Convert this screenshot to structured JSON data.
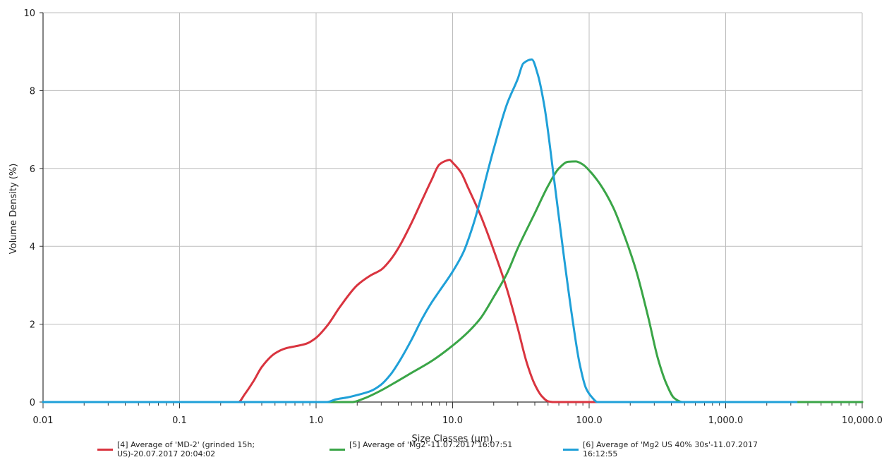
{
  "chart_data": {
    "type": "line",
    "xlabel": "Size Classes (µm)",
    "ylabel": "Volume Density (%)",
    "xscale": "log",
    "xlim": [
      0.01,
      10000
    ],
    "ylim": [
      0,
      10
    ],
    "grid": true,
    "legend_position": "bottom",
    "x_ticks": [
      0.01,
      0.1,
      1,
      10,
      100,
      1000,
      10000
    ],
    "x_tick_labels": [
      "0.01",
      "0.1",
      "1.0",
      "10.0",
      "100.0",
      "1,000.0",
      "10,000.0"
    ],
    "y_ticks": [
      0,
      2,
      4,
      6,
      8,
      10
    ],
    "y_tick_labels": [
      "0",
      "2",
      "4",
      "6",
      "8",
      "10"
    ],
    "series": [
      {
        "name": "[4] Average of 'MD-2' (grinded 15h; US)-20.07.2017 20:04:02",
        "color": "#d9343f",
        "points": [
          [
            0.01,
            0
          ],
          [
            0.27,
            0
          ],
          [
            0.3,
            0.2
          ],
          [
            0.35,
            0.55
          ],
          [
            0.4,
            0.9
          ],
          [
            0.5,
            1.25
          ],
          [
            0.6,
            1.38
          ],
          [
            0.7,
            1.43
          ],
          [
            0.85,
            1.5
          ],
          [
            1.0,
            1.65
          ],
          [
            1.2,
            1.95
          ],
          [
            1.5,
            2.45
          ],
          [
            2.0,
            3.0
          ],
          [
            2.5,
            3.25
          ],
          [
            3.0,
            3.4
          ],
          [
            3.5,
            3.65
          ],
          [
            4.0,
            3.95
          ],
          [
            5.0,
            4.6
          ],
          [
            6.0,
            5.2
          ],
          [
            7.0,
            5.7
          ],
          [
            8.0,
            6.1
          ],
          [
            9.0,
            6.2
          ],
          [
            9.5,
            6.22
          ],
          [
            10.0,
            6.15
          ],
          [
            11.5,
            5.9
          ],
          [
            13.0,
            5.5
          ],
          [
            16.0,
            4.8
          ],
          [
            20.0,
            3.9
          ],
          [
            25.0,
            2.9
          ],
          [
            30.0,
            1.9
          ],
          [
            35.0,
            1.0
          ],
          [
            40.0,
            0.45
          ],
          [
            45.0,
            0.15
          ],
          [
            50.0,
            0.02
          ],
          [
            55.0,
            0
          ],
          [
            10000,
            0
          ]
        ]
      },
      {
        "name": "[5] Average of 'Mg2'-11.07.2017 16:07:51",
        "color": "#3aa547",
        "points": [
          [
            0.01,
            0
          ],
          [
            1.85,
            0
          ],
          [
            2.2,
            0.08
          ],
          [
            3.0,
            0.3
          ],
          [
            4.0,
            0.55
          ],
          [
            5.0,
            0.75
          ],
          [
            7.0,
            1.05
          ],
          [
            10.0,
            1.45
          ],
          [
            13.0,
            1.8
          ],
          [
            16.0,
            2.15
          ],
          [
            20.0,
            2.7
          ],
          [
            25.0,
            3.3
          ],
          [
            30.0,
            3.95
          ],
          [
            40.0,
            4.85
          ],
          [
            50.0,
            5.55
          ],
          [
            60.0,
            6.0
          ],
          [
            70.0,
            6.17
          ],
          [
            80.0,
            6.18
          ],
          [
            90.0,
            6.1
          ],
          [
            100.0,
            5.95
          ],
          [
            120.0,
            5.6
          ],
          [
            150.0,
            5.0
          ],
          [
            180.0,
            4.3
          ],
          [
            220.0,
            3.4
          ],
          [
            270.0,
            2.2
          ],
          [
            320.0,
            1.1
          ],
          [
            370.0,
            0.45
          ],
          [
            420.0,
            0.1
          ],
          [
            480.0,
            0
          ],
          [
            10000,
            0
          ]
        ]
      },
      {
        "name": "[6] Average of 'Mg2 US 40% 30s'-11.07.2017 16:12:55",
        "color": "#1fa0d8",
        "points": [
          [
            0.01,
            0
          ],
          [
            1.2,
            0
          ],
          [
            1.4,
            0.07
          ],
          [
            1.7,
            0.12
          ],
          [
            2.0,
            0.18
          ],
          [
            2.5,
            0.28
          ],
          [
            3.0,
            0.45
          ],
          [
            3.5,
            0.7
          ],
          [
            4.0,
            1.0
          ],
          [
            5.0,
            1.6
          ],
          [
            6.0,
            2.15
          ],
          [
            7.0,
            2.55
          ],
          [
            8.0,
            2.85
          ],
          [
            10.0,
            3.35
          ],
          [
            12.0,
            3.85
          ],
          [
            14.0,
            4.5
          ],
          [
            16.0,
            5.2
          ],
          [
            18.0,
            5.9
          ],
          [
            20.0,
            6.5
          ],
          [
            25.0,
            7.65
          ],
          [
            30.0,
            8.3
          ],
          [
            33.0,
            8.7
          ],
          [
            38.0,
            8.8
          ],
          [
            42.0,
            8.42
          ],
          [
            47.0,
            7.6
          ],
          [
            55.0,
            5.8
          ],
          [
            65.0,
            3.8
          ],
          [
            75.0,
            2.2
          ],
          [
            85.0,
            1.0
          ],
          [
            95.0,
            0.35
          ],
          [
            105.0,
            0.12
          ],
          [
            115.0,
            0
          ],
          [
            3300,
            0
          ]
        ]
      }
    ]
  }
}
